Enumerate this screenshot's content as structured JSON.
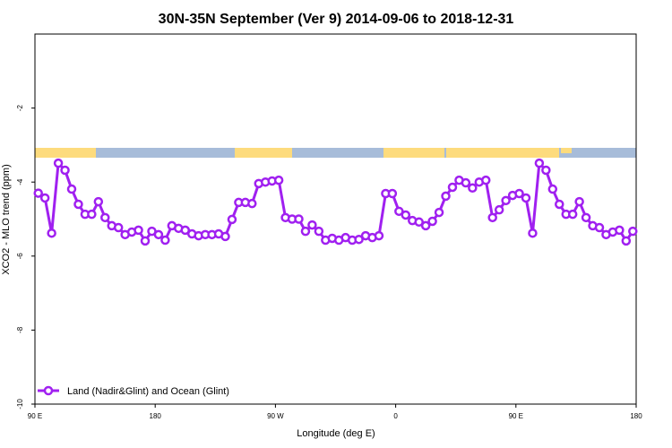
{
  "chart_data": {
    "type": "line",
    "title": "30N-35N September (Ver 9)   2014-09-06 to 2018-12-31",
    "x_label": "Longitude (deg E)",
    "y_label": "XCO2 - MLO trend (ppm)",
    "xlim": [
      90,
      540
    ],
    "xticks": [
      {
        "value": 90,
        "label": "90 E"
      },
      {
        "value": 180,
        "label": "180"
      },
      {
        "value": 270,
        "label": "90 W"
      },
      {
        "value": 360,
        "label": "0"
      },
      {
        "value": 450,
        "label": "90 E"
      },
      {
        "value": 540,
        "label": "180"
      }
    ],
    "ylim": [
      -10,
      0
    ],
    "yticks": [
      -10,
      -8,
      -6,
      -4,
      -2
    ],
    "legend": "bottom-left",
    "x": [
      92.5,
      97.5,
      102.5,
      107.5,
      112.5,
      117.5,
      122.5,
      127.5,
      132.5,
      137.5,
      142.5,
      147.5,
      152.5,
      157.5,
      162.5,
      167.5,
      172.5,
      177.5,
      182.5,
      187.5,
      192.5,
      197.5,
      202.5,
      207.5,
      212.5,
      217.5,
      222.5,
      227.5,
      232.5,
      237.5,
      242.5,
      247.5,
      252.5,
      257.5,
      262.5,
      267.5,
      272.5,
      277.5,
      282.5,
      287.5,
      292.5,
      297.5,
      302.5,
      307.5,
      312.5,
      317.5,
      322.5,
      327.5,
      332.5,
      337.5,
      342.5,
      347.5,
      352.5,
      357.5,
      362.5,
      367.5,
      372.5,
      377.5,
      382.5,
      387.5,
      392.5,
      397.5,
      402.5,
      407.5,
      412.5,
      417.5,
      422.5,
      427.5,
      432.5,
      437.5,
      442.5,
      447.5,
      452.5,
      457.5,
      462.5,
      467.5,
      472.5,
      477.5,
      482.5,
      487.5,
      492.5,
      497.5,
      502.5,
      507.5,
      512.5,
      517.5,
      522.5,
      527.5,
      532.5,
      537.5
    ],
    "series": [
      {
        "name": "Land (Nadir&Glint) and Ocean (Glint)",
        "color": "#a020f0",
        "values": [
          -4.3,
          -4.43,
          -5.38,
          -3.49,
          -3.68,
          -4.19,
          -4.6,
          -4.87,
          -4.87,
          -4.53,
          -4.96,
          -5.18,
          -5.23,
          -5.42,
          -5.35,
          -5.3,
          -5.59,
          -5.33,
          -5.42,
          -5.57,
          -5.18,
          -5.25,
          -5.3,
          -5.4,
          -5.45,
          -5.42,
          -5.42,
          -5.4,
          -5.47,
          -5.01,
          -4.55,
          -4.55,
          -4.58,
          -4.04,
          -4.0,
          -3.97,
          -3.95,
          -4.96,
          -5.0,
          -5.0,
          -5.33,
          -5.16,
          -5.33,
          -5.57,
          -5.52,
          -5.57,
          -5.5,
          -5.57,
          -5.55,
          -5.45,
          -5.5,
          -5.45,
          -4.31,
          -4.31,
          -4.79,
          -4.89,
          -5.04,
          -5.08,
          -5.18,
          -5.06,
          -4.82,
          -4.38,
          -4.14,
          -3.95,
          -4.02,
          -4.16,
          -4.0,
          -3.95,
          -4.96,
          -4.75,
          -4.5,
          -4.36,
          -4.31,
          -4.43,
          -5.38,
          -3.49,
          -3.68,
          -4.19,
          -4.6,
          -4.87,
          -4.87,
          -4.53,
          -4.96,
          -5.18,
          -5.23,
          -5.42,
          -5.35,
          -5.3,
          -5.59,
          -5.33
        ]
      }
    ]
  }
}
